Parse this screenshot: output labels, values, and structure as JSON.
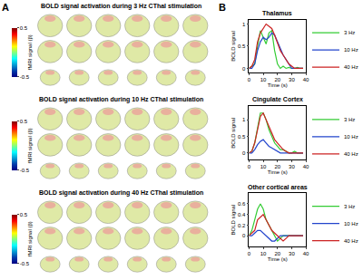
{
  "panel_labels": [
    "A",
    "B"
  ],
  "brain_maps": [
    {
      "title": "BOLD signal activation during 3 Hz CThal stimulation",
      "colorbar": {
        "title": "fMRI signal (β)",
        "range": [
          -0.5,
          0.5
        ],
        "ticks": [
          0.5,
          -0.5
        ]
      }
    },
    {
      "title": "BOLD signal activation during 10 Hz CThal stimulation",
      "colorbar": {
        "title": "fMRI signal (β)",
        "range": [
          -0.5,
          0.5
        ],
        "ticks": [
          0.5,
          -0.5
        ]
      }
    },
    {
      "title": "BOLD signal activation during 40 Hz CThal stimulation",
      "colorbar": {
        "title": "fMRI signal (β)",
        "range": [
          -0.5,
          0.5
        ],
        "ticks": [
          0.5,
          -0.5
        ]
      }
    }
  ],
  "chart_data": [
    {
      "type": "line",
      "title": "Thalamus",
      "xlabel": "Time (s)",
      "ylabel": "BOLD signal",
      "x": [
        0,
        2,
        4,
        6,
        8,
        10,
        12,
        14,
        16,
        18,
        20,
        22,
        24,
        26,
        28,
        30,
        32,
        34,
        36,
        38
      ],
      "xlim": [
        0,
        40
      ],
      "xticks": [
        0,
        10,
        20,
        30,
        40
      ],
      "ylim": [
        -0.1,
        1.1
      ],
      "yticks": [
        0,
        0.5,
        1
      ],
      "legend": "upper right",
      "series": [
        {
          "name": "3 Hz",
          "color": "#33cc33",
          "values": [
            0,
            0.05,
            0.1,
            0.5,
            0.85,
            0.7,
            0.55,
            0.8,
            0.85,
            0.4,
            0.1,
            0,
            0.05,
            0,
            0.02,
            0,
            0,
            0.02,
            0,
            0
          ]
        },
        {
          "name": "10 Hz",
          "color": "#2244cc",
          "values": [
            0,
            0,
            0.1,
            0.4,
            0.6,
            0.7,
            0.65,
            0.7,
            0.8,
            0.75,
            0.6,
            0.45,
            0.3,
            0.2,
            0.1,
            0,
            0,
            0,
            0,
            0
          ]
        },
        {
          "name": "40 Hz",
          "color": "#cc2222",
          "values": [
            0,
            0.05,
            0.2,
            0.6,
            0.8,
            0.9,
            1.0,
            0.95,
            0.9,
            0.75,
            0.55,
            0.4,
            0.3,
            0.2,
            0.1,
            0.05,
            0,
            0,
            0,
            0
          ]
        }
      ]
    },
    {
      "type": "line",
      "title": "Cingulate Cortex",
      "xlabel": "Time (s)",
      "ylabel": "BOLD signal",
      "x": [
        0,
        2,
        4,
        6,
        8,
        10,
        12,
        14,
        16,
        18,
        20,
        22,
        24,
        26,
        28,
        30,
        32,
        34,
        36,
        38
      ],
      "xlim": [
        0,
        40
      ],
      "xticks": [
        0,
        10,
        20,
        30,
        40
      ],
      "ylim": [
        -0.2,
        1.4
      ],
      "yticks": [
        0,
        0.5,
        1
      ],
      "legend": "upper right",
      "series": [
        {
          "name": "3 Hz",
          "color": "#33cc33",
          "values": [
            0,
            0.05,
            0.3,
            0.8,
            1.2,
            1.2,
            1.0,
            0.7,
            0.5,
            0.3,
            0.2,
            0.1,
            0.1,
            0.05,
            0,
            0,
            0.05,
            0,
            0,
            0
          ]
        },
        {
          "name": "10 Hz",
          "color": "#2244cc",
          "values": [
            0,
            0,
            0.1,
            0.25,
            0.35,
            0.4,
            0.3,
            0.2,
            0.15,
            0.1,
            0.05,
            0,
            0,
            0,
            0,
            0,
            0,
            0,
            0,
            0
          ]
        },
        {
          "name": "40 Hz",
          "color": "#cc2222",
          "values": [
            0,
            0.05,
            0.3,
            0.7,
            1.1,
            1.2,
            1.0,
            0.8,
            0.6,
            0.4,
            0.3,
            0.2,
            0.1,
            0.05,
            0,
            0,
            0,
            0,
            0,
            0
          ]
        }
      ]
    },
    {
      "type": "line",
      "title": "Other cortical areas",
      "xlabel": "Time (s)",
      "ylabel": "BOLD signal",
      "x": [
        0,
        2,
        4,
        6,
        8,
        10,
        12,
        14,
        16,
        18,
        20,
        22,
        24,
        26,
        28,
        30,
        32,
        34,
        36,
        38
      ],
      "xlim": [
        0,
        40
      ],
      "xticks": [
        0,
        10,
        20,
        30,
        40
      ],
      "ylim": [
        -0.2,
        0.8
      ],
      "yticks": [
        0,
        0.2,
        0.4,
        0.6
      ],
      "legend": "upper right",
      "series": [
        {
          "name": "3 Hz",
          "color": "#33cc33",
          "values": [
            0,
            0.1,
            0.3,
            0.5,
            0.6,
            0.5,
            0.3,
            0.2,
            0.1,
            0,
            -0.1,
            -0.05,
            0,
            0,
            0,
            0,
            0,
            0,
            0,
            0
          ]
        },
        {
          "name": "10 Hz",
          "color": "#2244cc",
          "values": [
            0,
            0,
            0.05,
            0.1,
            0.1,
            0.05,
            0,
            -0.05,
            -0.1,
            -0.1,
            -0.05,
            0,
            0,
            0,
            0,
            0,
            0,
            0,
            0,
            0
          ]
        },
        {
          "name": "40 Hz",
          "color": "#cc2222",
          "values": [
            0,
            0.05,
            0.1,
            0.3,
            0.35,
            0.4,
            0.3,
            0.2,
            0.1,
            0.05,
            0,
            -0.05,
            -0.1,
            -0.05,
            0,
            0,
            0,
            0,
            0,
            0
          ]
        }
      ]
    }
  ]
}
